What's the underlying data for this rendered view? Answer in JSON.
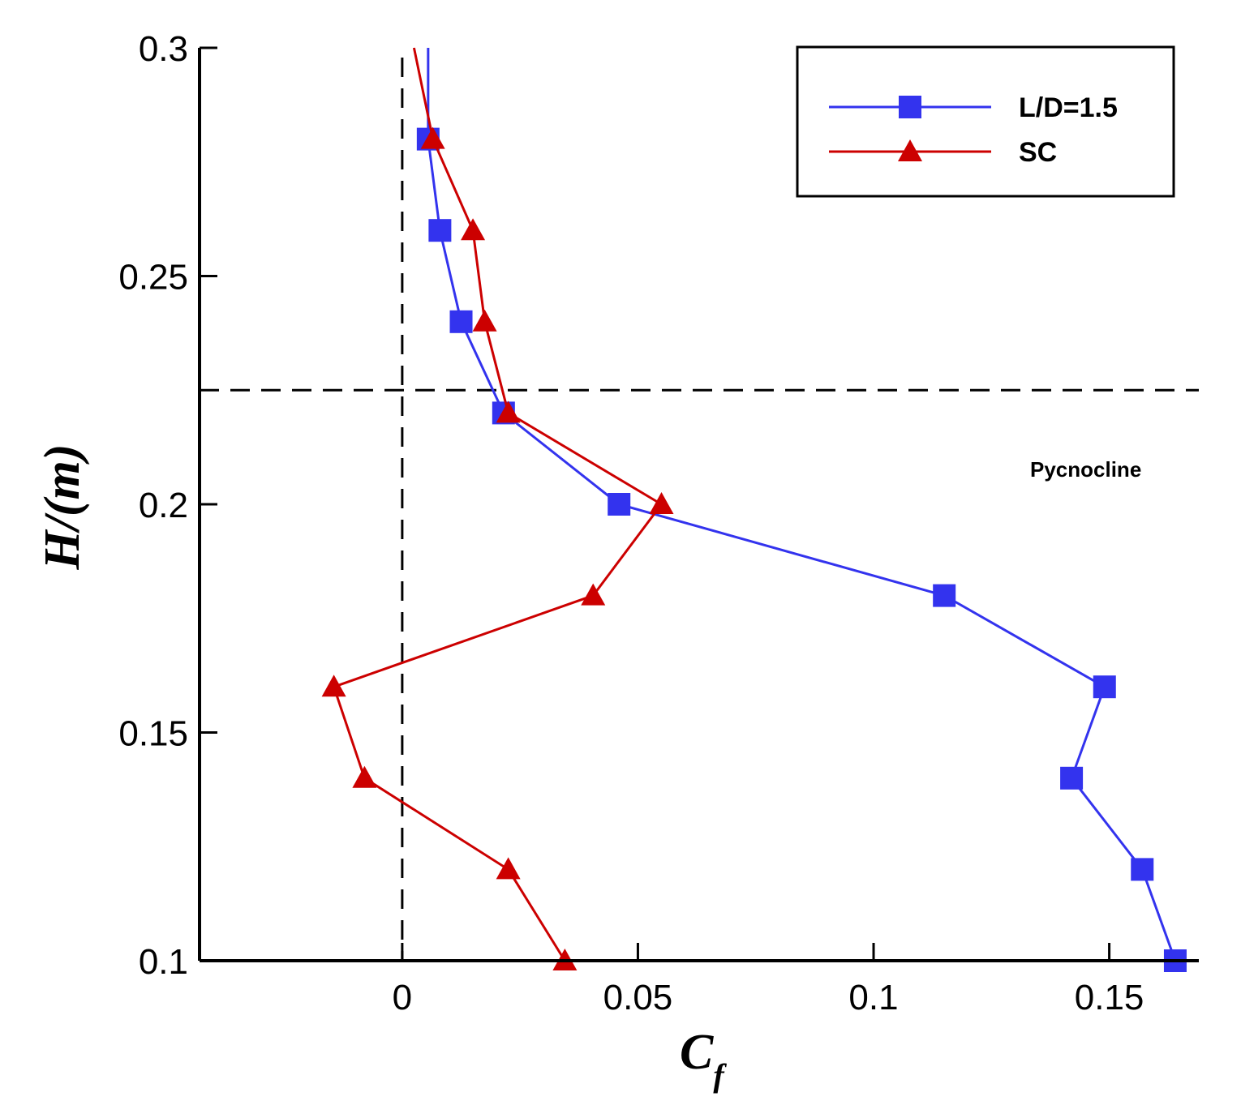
{
  "chart_data": {
    "type": "line",
    "orientation": "profile",
    "xlabel": "C",
    "xlabel_sub": "f",
    "ylabel": "H/(m)",
    "xlim": [
      -0.043,
      0.169
    ],
    "ylim": [
      0.1,
      0.3
    ],
    "xticks": [
      0,
      0.05,
      0.1,
      0.15
    ],
    "xtick_labels": [
      "0",
      "0.05",
      "0.1",
      "0.15"
    ],
    "yticks": [
      0.1,
      0.15,
      0.2,
      0.25,
      0.3
    ],
    "ytick_labels": [
      "0.1",
      "0.15",
      "0.2",
      "0.25",
      "0.3"
    ],
    "reference_lines": [
      {
        "orientation": "vertical",
        "value": 0,
        "style": "dashed"
      },
      {
        "orientation": "horizontal",
        "value": 0.225,
        "style": "dashed"
      }
    ],
    "annotation": "Pycnocline",
    "legend_position": "top-right",
    "series": [
      {
        "name": "L/D=1.5",
        "color": "#3333ee",
        "marker": "square",
        "line_only": [
          {
            "x": 0.0055,
            "y": 0.3
          }
        ],
        "points": [
          {
            "x": 0.0055,
            "y": 0.28
          },
          {
            "x": 0.008,
            "y": 0.26
          },
          {
            "x": 0.0125,
            "y": 0.24
          },
          {
            "x": 0.0215,
            "y": 0.22
          },
          {
            "x": 0.046,
            "y": 0.2
          },
          {
            "x": 0.115,
            "y": 0.18
          },
          {
            "x": 0.149,
            "y": 0.16
          },
          {
            "x": 0.142,
            "y": 0.14
          },
          {
            "x": 0.157,
            "y": 0.12
          },
          {
            "x": 0.164,
            "y": 0.1
          }
        ]
      },
      {
        "name": "SC",
        "color": "#cc0000",
        "marker": "triangle",
        "line_only": [
          {
            "x": 0.0025,
            "y": 0.3
          }
        ],
        "points": [
          {
            "x": 0.0065,
            "y": 0.28
          },
          {
            "x": 0.015,
            "y": 0.26
          },
          {
            "x": 0.0175,
            "y": 0.24
          },
          {
            "x": 0.0225,
            "y": 0.22
          },
          {
            "x": 0.055,
            "y": 0.2
          },
          {
            "x": 0.0405,
            "y": 0.18
          },
          {
            "x": -0.0145,
            "y": 0.16
          },
          {
            "x": -0.008,
            "y": 0.14
          },
          {
            "x": 0.0225,
            "y": 0.12
          },
          {
            "x": 0.0345,
            "y": 0.1
          }
        ]
      }
    ]
  }
}
